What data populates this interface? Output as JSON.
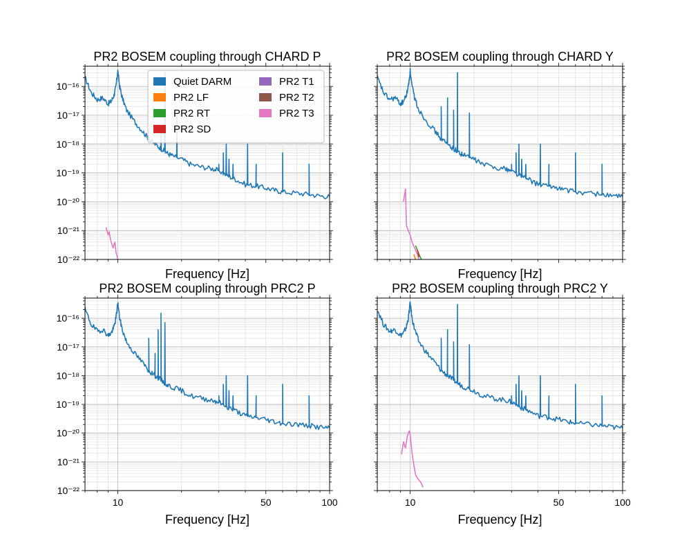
{
  "figure": {
    "background": "#ffffff",
    "legend": {
      "placement": "upper-center of top-left panel",
      "columns": 2,
      "entries": [
        {
          "label": "Quiet DARM",
          "color": "#1f77b4"
        },
        {
          "label": "PR2 LF",
          "color": "#ff7f0e"
        },
        {
          "label": "PR2 RT",
          "color": "#2ca02c"
        },
        {
          "label": "PR2 SD",
          "color": "#d62728"
        },
        {
          "label": "PR2 T1",
          "color": "#9467bd"
        },
        {
          "label": "PR2 T2",
          "color": "#8c564b"
        },
        {
          "label": "PR2 T3",
          "color": "#e377c2"
        }
      ]
    }
  },
  "chart_data": [
    {
      "type": "line",
      "title": "PR2 BOSEM coupling through CHARD P",
      "xlabel": "Frequency [Hz]",
      "ylabel": "",
      "xscale": "log",
      "yscale": "log",
      "xlim": [
        7,
        100
      ],
      "ylim": [
        1e-22,
        5e-16
      ],
      "xticks": [
        10,
        50,
        100
      ],
      "xticklabels": [
        "",
        "",
        ""
      ],
      "yticklabels": [
        "10⁻¹⁶",
        "10⁻¹⁷",
        "10⁻¹⁸",
        "10⁻¹⁹",
        "10⁻²⁰",
        "10⁻²¹",
        "10⁻²²"
      ],
      "grid": true,
      "series": [
        {
          "name": "Quiet DARM",
          "color": "#1f77b4",
          "x": [
            7.0,
            7.5,
            8.0,
            8.5,
            9.0,
            9.3,
            9.6,
            9.8,
            10.0,
            10.2,
            10.5,
            11,
            12,
            13,
            14,
            15,
            16,
            17,
            18,
            20,
            22,
            25,
            28,
            30,
            33,
            36,
            40,
            45,
            50,
            55,
            60,
            70,
            80,
            90,
            100
          ],
          "y": [
            2e-16,
            6e-17,
            3.5e-17,
            4e-17,
            2.5e-17,
            3e-17,
            5e-17,
            1e-16,
            3.5e-16,
            1e-16,
            4e-17,
            1.5e-17,
            6e-18,
            3e-18,
            1.5e-18,
            1e-18,
            7e-19,
            5e-19,
            4e-19,
            3e-19,
            2e-19,
            1.6e-19,
            1.4e-19,
            1.2e-19,
            8e-20,
            6e-20,
            4e-20,
            3.5e-20,
            3e-20,
            2.5e-20,
            2.2e-20,
            2e-20,
            1.8e-20,
            1.6e-20,
            1.5e-20
          ],
          "peaks": [
            [
              14,
              2e-18
            ],
            [
              16,
              4e-18
            ],
            [
              16.7,
              3e-16
            ],
            [
              19,
              1.5e-17
            ],
            [
              30,
              2e-19
            ],
            [
              31.5,
              5e-19
            ],
            [
              32.5,
              1e-18
            ],
            [
              33.5,
              3e-19
            ],
            [
              35,
              2e-19
            ],
            [
              41,
              1e-18
            ],
            [
              45,
              2e-19
            ],
            [
              60,
              5e-19
            ],
            [
              80,
              2e-19
            ]
          ]
        },
        {
          "name": "PR2 T3",
          "color": "#e377c2",
          "x": [
            8.8,
            9.0,
            9.1,
            9.3,
            9.5,
            9.7,
            9.8,
            10.0
          ],
          "y": [
            1.3e-21,
            7e-22,
            9e-22,
            4e-22,
            2.5e-22,
            4e-22,
            1.8e-22,
            1e-22
          ]
        }
      ]
    },
    {
      "type": "line",
      "title": "PR2 BOSEM coupling through CHARD Y",
      "xlabel": "Frequency [Hz]",
      "ylabel": "",
      "xscale": "log",
      "yscale": "log",
      "xlim": [
        7,
        100
      ],
      "ylim": [
        1e-22,
        5e-16
      ],
      "xticks": [
        10,
        50,
        100
      ],
      "xticklabels": [
        "",
        "",
        ""
      ],
      "yticklabels": [
        "",
        "",
        "",
        "",
        "",
        "",
        ""
      ],
      "grid": true,
      "series": [
        {
          "name": "Quiet DARM",
          "color": "#1f77b4",
          "x": [
            7.0,
            7.5,
            8.0,
            8.5,
            9.0,
            9.3,
            9.6,
            9.8,
            10.0,
            10.2,
            10.5,
            11,
            12,
            13,
            14,
            15,
            16,
            17,
            18,
            20,
            22,
            25,
            28,
            30,
            33,
            36,
            40,
            45,
            50,
            55,
            60,
            70,
            80,
            90,
            100
          ],
          "y": [
            2e-16,
            6e-17,
            3.5e-17,
            4e-17,
            2.5e-17,
            3e-17,
            5e-17,
            1e-16,
            3.5e-16,
            1e-16,
            4e-17,
            1.5e-17,
            6e-18,
            3e-18,
            1.5e-18,
            1e-18,
            7e-19,
            5e-19,
            4e-19,
            3e-19,
            2e-19,
            1.6e-19,
            1.4e-19,
            1.2e-19,
            8e-20,
            6e-20,
            4e-20,
            3.5e-20,
            3e-20,
            2.5e-20,
            2.2e-20,
            2e-20,
            1.8e-20,
            1.6e-20,
            1.5e-20
          ],
          "peaks": [
            [
              14,
              2e-17
            ],
            [
              15,
              4e-17
            ],
            [
              16,
              1.5e-17
            ],
            [
              16.7,
              3e-16
            ],
            [
              19,
              1.2e-17
            ],
            [
              30,
              2e-19
            ],
            [
              31.5,
              5e-19
            ],
            [
              32.5,
              1e-18
            ],
            [
              33.5,
              3e-19
            ],
            [
              35,
              2e-19
            ],
            [
              41,
              1e-18
            ],
            [
              45,
              2e-19
            ],
            [
              60,
              5e-19
            ],
            [
              80,
              2e-19
            ]
          ]
        },
        {
          "name": "PR2 T3",
          "color": "#e377c2",
          "x": [
            9.3,
            9.5,
            9.6,
            9.8,
            10.0,
            10.2,
            10.5,
            10.8,
            11.0
          ],
          "y": [
            1e-20,
            2.8e-20,
            1.5e-21,
            1e-21,
            7e-22,
            4e-22,
            2.5e-22,
            1.5e-22,
            1e-22
          ]
        },
        {
          "name": "PR2 RT",
          "color": "#2ca02c",
          "x": [
            10.6,
            10.9,
            11.1,
            11.3
          ],
          "y": [
            3e-22,
            1.8e-22,
            1.3e-22,
            1e-22
          ]
        },
        {
          "name": "PR2 SD",
          "color": "#d62728",
          "x": [
            10.8,
            11.0
          ],
          "y": [
            2.2e-22,
            1.2e-22
          ]
        },
        {
          "name": "PR2 LF",
          "color": "#ff7f0e",
          "x": [
            10.4,
            10.6
          ],
          "y": [
            1.5e-22,
            1e-22
          ]
        }
      ]
    },
    {
      "type": "line",
      "title": "PR2 BOSEM coupling through PRC2 P",
      "xlabel": "Frequency [Hz]",
      "ylabel": "",
      "xscale": "log",
      "yscale": "log",
      "xlim": [
        7,
        100
      ],
      "ylim": [
        1e-22,
        5e-16
      ],
      "xticks": [
        10,
        50,
        100
      ],
      "xticklabels": [
        "10",
        "50",
        "100"
      ],
      "yticklabels": [
        "10⁻¹⁶",
        "10⁻¹⁷",
        "10⁻¹⁸",
        "10⁻¹⁹",
        "10⁻²⁰",
        "10⁻²¹",
        "10⁻²²"
      ],
      "grid": true,
      "series": [
        {
          "name": "Quiet DARM",
          "color": "#1f77b4",
          "x": [
            7.0,
            7.5,
            8.0,
            8.5,
            9.0,
            9.3,
            9.6,
            9.8,
            10.0,
            10.2,
            10.5,
            11,
            12,
            13,
            14,
            15,
            16,
            17,
            18,
            20,
            22,
            25,
            28,
            30,
            33,
            36,
            40,
            45,
            50,
            55,
            60,
            70,
            80,
            90,
            100
          ],
          "y": [
            2e-16,
            6e-17,
            3.5e-17,
            4e-17,
            2.5e-17,
            3e-17,
            5e-17,
            1e-16,
            3.5e-16,
            1e-16,
            4e-17,
            1.5e-17,
            6e-18,
            3e-18,
            1.5e-18,
            1e-18,
            7e-19,
            5e-19,
            4e-19,
            3e-19,
            2e-19,
            1.6e-19,
            1.4e-19,
            1.2e-19,
            8e-20,
            6e-20,
            4e-20,
            3.5e-20,
            3e-20,
            2.5e-20,
            2.2e-20,
            2e-20,
            1.8e-20,
            1.6e-20,
            1.5e-20
          ],
          "peaks": [
            [
              14,
              2e-17
            ],
            [
              15,
              6e-18
            ],
            [
              15.5,
              4e-17
            ],
            [
              16,
              1.5e-16
            ],
            [
              16.7,
              7e-17
            ],
            [
              30,
              2e-19
            ],
            [
              31.5,
              5e-19
            ],
            [
              32.5,
              1e-18
            ],
            [
              33.5,
              3e-19
            ],
            [
              35,
              2e-19
            ],
            [
              41,
              1e-18
            ],
            [
              45,
              2e-19
            ],
            [
              60,
              5e-19
            ],
            [
              80,
              2e-19
            ]
          ]
        }
      ]
    },
    {
      "type": "line",
      "title": "PR2 BOSEM coupling through PRC2 Y",
      "xlabel": "Frequency [Hz]",
      "ylabel": "",
      "xscale": "log",
      "yscale": "log",
      "xlim": [
        7,
        100
      ],
      "ylim": [
        1e-22,
        5e-16
      ],
      "xticks": [
        10,
        50,
        100
      ],
      "xticklabels": [
        "10",
        "50",
        "100"
      ],
      "yticklabels": [
        "",
        "",
        "",
        "",
        "",
        "",
        ""
      ],
      "grid": true,
      "series": [
        {
          "name": "Quiet DARM",
          "color": "#1f77b4",
          "x": [
            7.0,
            7.5,
            8.0,
            8.5,
            9.0,
            9.3,
            9.6,
            9.8,
            10.0,
            10.2,
            10.5,
            11,
            12,
            13,
            14,
            15,
            16,
            17,
            18,
            20,
            22,
            25,
            28,
            30,
            33,
            36,
            40,
            45,
            50,
            55,
            60,
            70,
            80,
            90,
            100
          ],
          "y": [
            2e-16,
            6e-17,
            3.5e-17,
            4e-17,
            2.5e-17,
            3e-17,
            5e-17,
            1e-16,
            3.5e-16,
            1e-16,
            4e-17,
            1.5e-17,
            6e-18,
            3e-18,
            1.5e-18,
            1e-18,
            7e-19,
            5e-19,
            4e-19,
            3e-19,
            2e-19,
            1.6e-19,
            1.4e-19,
            1.2e-19,
            8e-20,
            6e-20,
            4e-20,
            3.5e-20,
            3e-20,
            2.5e-20,
            2.2e-20,
            2e-20,
            1.8e-20,
            1.6e-20,
            1.5e-20
          ],
          "peaks": [
            [
              14,
              2e-17
            ],
            [
              15,
              4e-17
            ],
            [
              16,
              1.5e-17
            ],
            [
              16.7,
              3e-16
            ],
            [
              19,
              1.2e-17
            ],
            [
              30,
              2e-19
            ],
            [
              31.5,
              5e-19
            ],
            [
              32.5,
              1e-18
            ],
            [
              33.5,
              3e-19
            ],
            [
              35,
              2e-19
            ],
            [
              41,
              1e-18
            ],
            [
              45,
              2e-19
            ],
            [
              60,
              5e-19
            ],
            [
              80,
              2e-19
            ]
          ]
        },
        {
          "name": "PR2 T3",
          "color": "#e377c2",
          "x": [
            9.1,
            9.3,
            9.5,
            9.7,
            9.9,
            10.0,
            10.2,
            10.4,
            10.6,
            10.9,
            11.2,
            11.5
          ],
          "y": [
            1.8e-21,
            5e-21,
            3e-21,
            8e-21,
            1.2e-20,
            9e-21,
            2e-21,
            8e-22,
            3.5e-22,
            2.5e-22,
            2e-22,
            1.3e-22
          ]
        }
      ]
    }
  ]
}
